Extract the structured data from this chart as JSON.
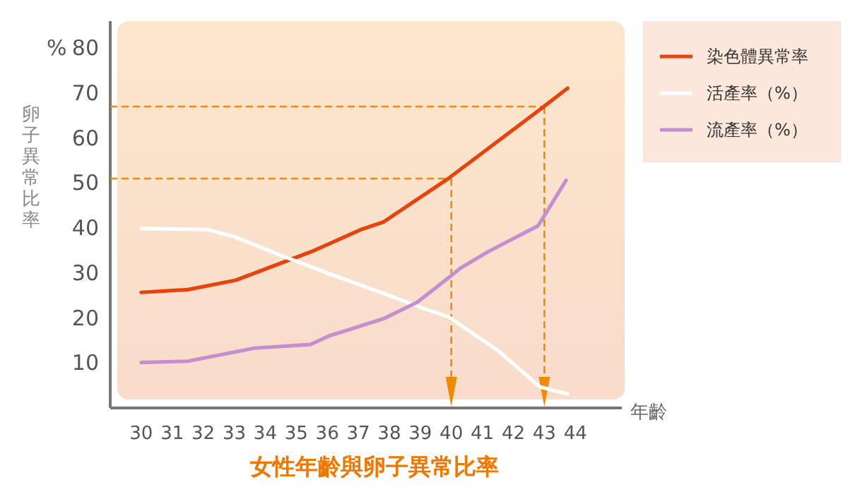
{
  "chart_data": {
    "type": "line",
    "title": "女性年齡與卵子異常比率",
    "xlabel": "年齡",
    "ylabel": "卵子異常比率",
    "annotations": [
      "%"
    ],
    "xlim": [
      29,
      45.5
    ],
    "xticks": [
      30,
      31,
      32,
      33,
      34,
      35,
      36,
      37,
      38,
      39,
      40,
      41,
      42,
      43,
      44
    ],
    "ylim": [
      0,
      86
    ],
    "yticks": [
      10,
      20,
      30,
      40,
      50,
      60,
      70,
      80
    ],
    "series": [
      {
        "name": "染色體異常率",
        "color": "#e8430c",
        "x": [
          30,
          31.5,
          33.05,
          35.5,
          37.1,
          37.8,
          39.9,
          43,
          43.75
        ],
        "values": [
          25.7,
          26.3,
          28.4,
          34.8,
          39.7,
          41.3,
          51,
          67.1,
          71.1
        ]
      },
      {
        "name": "活產率（%）",
        "color": "#ffffff",
        "x": [
          30,
          32.1,
          33,
          34.55,
          36.2,
          37.8,
          39.2,
          39.9,
          41.5,
          42.85,
          43.75
        ],
        "values": [
          39.9,
          39.7,
          38.1,
          33.8,
          29.5,
          25.5,
          21.9,
          20.3,
          12.8,
          4.7,
          3.1
        ]
      },
      {
        "name": "流產率（%）",
        "color": "#c58fcf",
        "x": [
          30,
          31.5,
          33.65,
          35.45,
          36.05,
          37.8,
          38.9,
          39.9,
          40.3,
          41.2,
          42.8,
          43.7
        ],
        "values": [
          10.1,
          10.4,
          13.3,
          14.1,
          16,
          19.8,
          23.5,
          28.9,
          31.1,
          34.8,
          40.5,
          50.6
        ]
      }
    ],
    "ref_lines": [
      {
        "axis": "x",
        "value": 40,
        "color": "#f08a00",
        "line_style": "dashed"
      },
      {
        "axis": "y",
        "value": 51,
        "color": "#f08a00",
        "line_style": "dashed"
      },
      {
        "axis": "x",
        "value": 43,
        "color": "#f08a00",
        "line_style": "dashed"
      },
      {
        "axis": "y",
        "value": 67,
        "color": "#f08a00",
        "line_style": "dashed"
      }
    ],
    "legend": "right"
  }
}
